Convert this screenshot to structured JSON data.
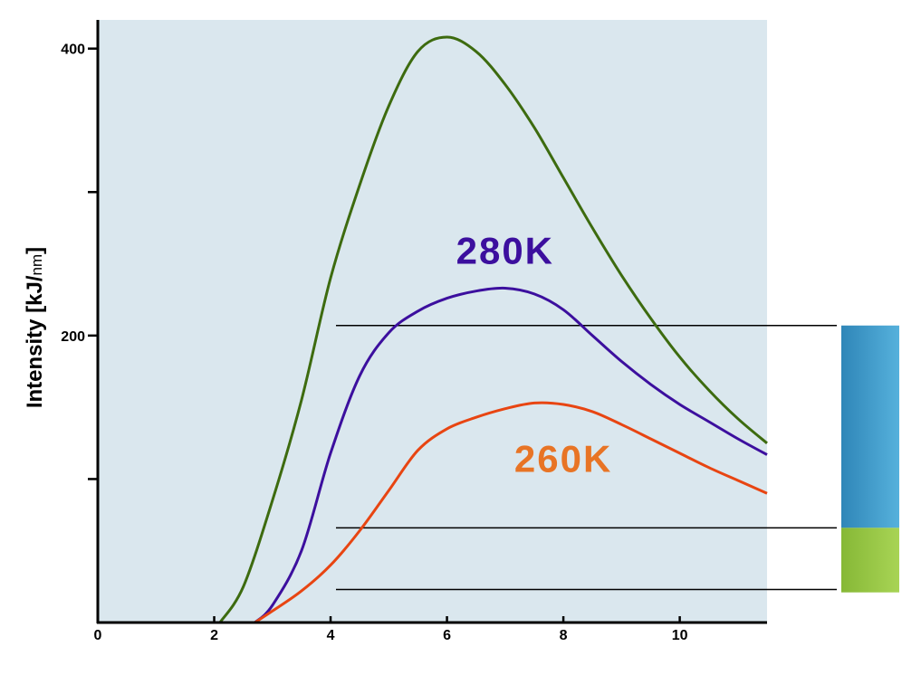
{
  "chart_data": {
    "type": "line",
    "title": "",
    "ylabel_main": "Intensity [kJ/",
    "ylabel_unit": "nm",
    "ylabel_end": "]",
    "xlim": [
      0,
      11.5
    ],
    "ylim": [
      0,
      420
    ],
    "x_ticks": [
      0,
      2,
      4,
      6,
      8,
      10
    ],
    "x_tick_labels": [
      "0",
      "2",
      "4",
      "6",
      "8",
      "10"
    ],
    "y_ticks": [
      100,
      200,
      300,
      400
    ],
    "y_tick_labels": [
      "",
      "200",
      "",
      "400"
    ],
    "grid": false,
    "series": [
      {
        "name": "",
        "color": "#3d6b0f",
        "x": [
          2.1,
          2.5,
          3.0,
          3.5,
          4.0,
          4.5,
          5.0,
          5.5,
          6.0,
          6.5,
          7.0,
          7.5,
          8.0,
          8.5,
          9.0,
          9.5,
          10.0,
          10.5,
          11.0,
          11.5
        ],
        "y": [
          0,
          25,
          85,
          155,
          240,
          305,
          360,
          398,
          408,
          398,
          375,
          345,
          310,
          275,
          242,
          212,
          185,
          162,
          142,
          125
        ]
      },
      {
        "name": "280K",
        "color": "#3c0f9e",
        "x": [
          2.7,
          3.0,
          3.5,
          4.0,
          4.5,
          5.0,
          5.5,
          6.0,
          6.5,
          7.0,
          7.5,
          8.0,
          8.5,
          9.0,
          9.5,
          10.0,
          10.5,
          11.0,
          11.5
        ],
        "y": [
          0,
          12,
          50,
          118,
          172,
          202,
          217,
          226,
          231,
          233,
          229,
          218,
          200,
          182,
          166,
          152,
          140,
          128,
          117
        ]
      },
      {
        "name": "260K",
        "color": "#e84512",
        "x": [
          2.7,
          3.0,
          3.5,
          4.0,
          4.5,
          5.0,
          5.5,
          6.0,
          6.5,
          7.0,
          7.5,
          8.0,
          8.5,
          9.0,
          9.5,
          10.0,
          10.5,
          11.0,
          11.5
        ],
        "y": [
          0,
          8,
          22,
          40,
          64,
          92,
          120,
          135,
          143,
          149,
          153,
          152,
          147,
          138,
          128,
          118,
          108,
          99,
          90
        ]
      }
    ],
    "reference_lines_y": [
      207,
      66,
      23
    ],
    "side_bar_bands": [
      {
        "from": 66,
        "to": 207,
        "color": "#3b8fc4"
      },
      {
        "from": 21,
        "to": 66,
        "color": "#95c43d"
      }
    ],
    "annotations": [
      {
        "text": "280K",
        "color": "#3c0f9e",
        "x": 7.0,
        "y": 250
      },
      {
        "text": "260K",
        "color": "#e87425",
        "x": 8.0,
        "y": 105
      }
    ]
  }
}
